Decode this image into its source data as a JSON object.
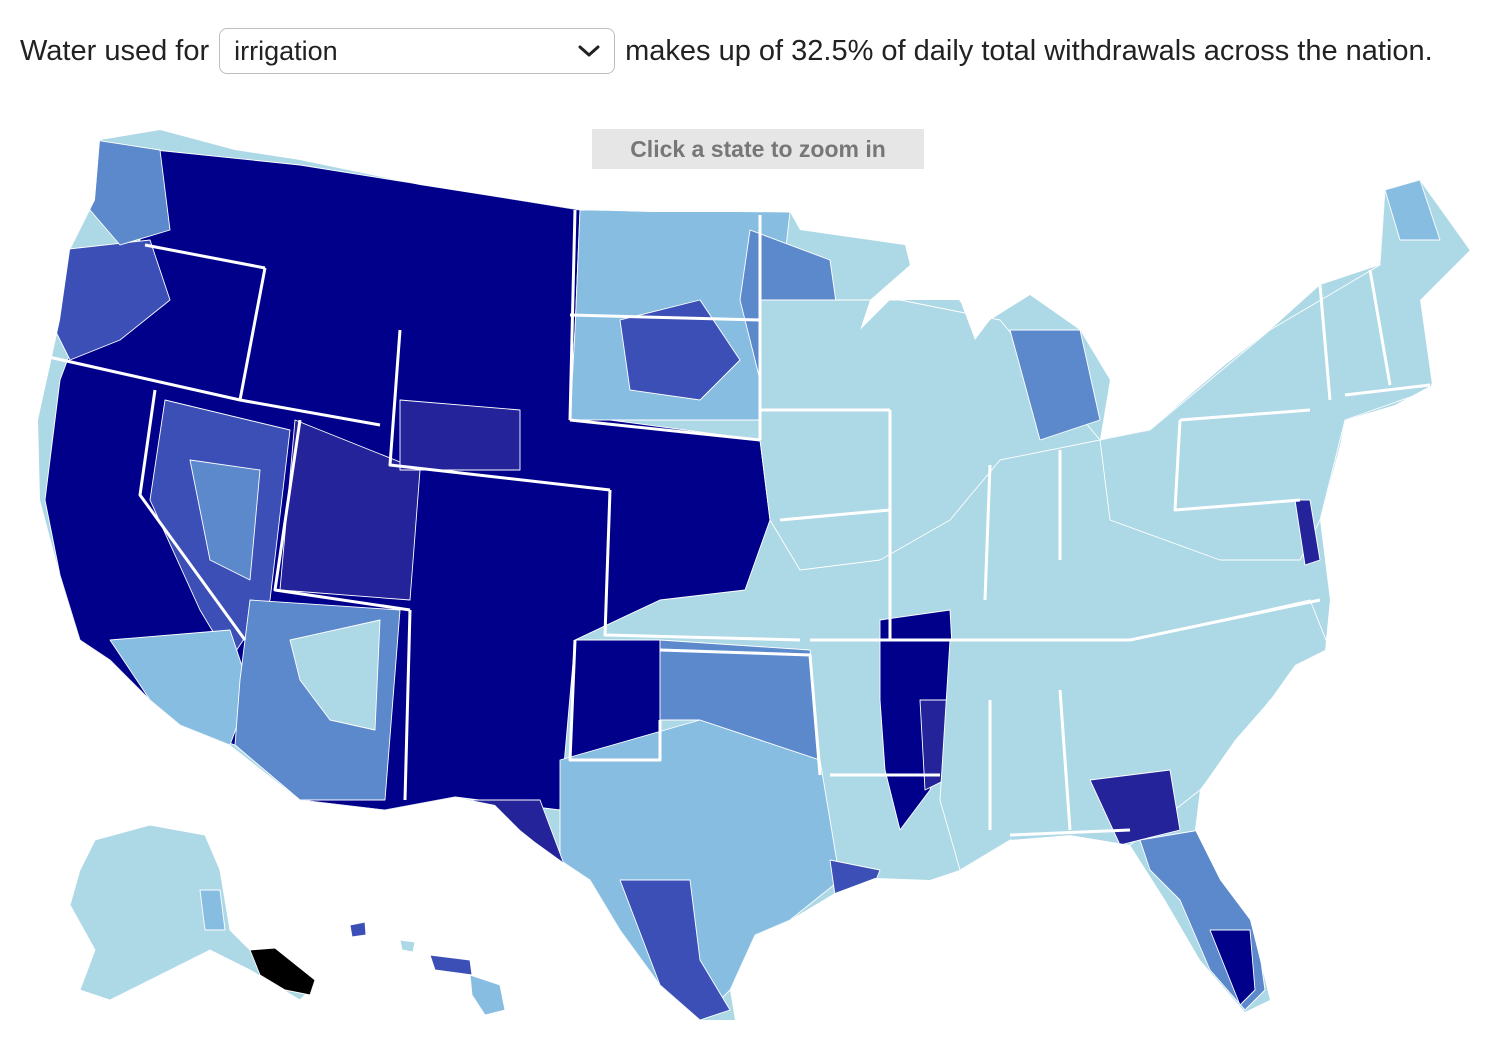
{
  "header": {
    "prefix": "Water used for",
    "selected_use": "irrigation",
    "suffix": "makes up of 32.5% of daily total withdrawals across the nation.",
    "icon": "chevron-down-icon"
  },
  "map": {
    "hint": "Click a state to zoom in",
    "colors": {
      "lightest": "#add8e6",
      "light": "#87bde0",
      "mid": "#5b89cc",
      "mid_dark": "#3b4fb6",
      "dark": "#24239a",
      "darkest": "#00008b",
      "none": "#000000",
      "border": "#ffffff"
    }
  }
}
